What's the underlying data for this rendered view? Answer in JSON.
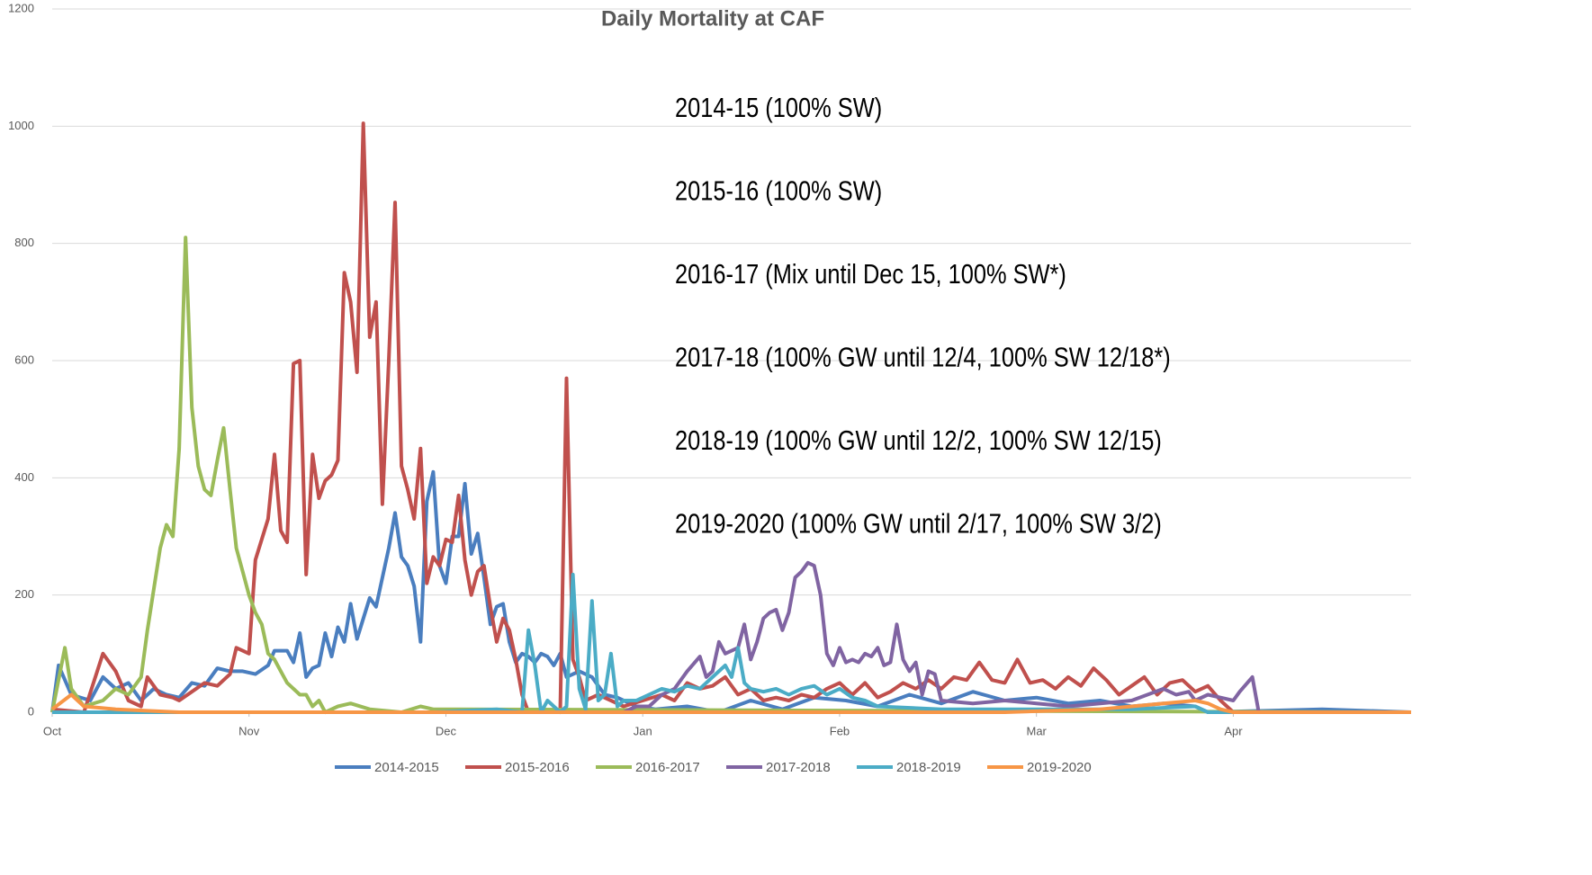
{
  "chart_data": {
    "type": "line",
    "title": "Daily Mortality at CAF",
    "annotations": [
      "2014-15 (100% SW)",
      "2015-16 (100% SW)",
      "2016-17 (Mix until Dec 15, 100% SW*)",
      "2017-18 (100% GW until 12/4, 100% SW 12/18*)",
      "2018-19 (100% GW until 12/2, 100% SW 12/15)",
      "2019-2020 (100% GW until 2/17, 100% SW 3/2)"
    ],
    "xlim": [
      0,
      214
    ],
    "xticks": [
      {
        "value": 0,
        "label": "Oct"
      },
      {
        "value": 31,
        "label": "Nov"
      },
      {
        "value": 62,
        "label": "Dec"
      },
      {
        "value": 93,
        "label": "Jan"
      },
      {
        "value": 124,
        "label": "Feb"
      },
      {
        "value": 155,
        "label": "Mar"
      },
      {
        "value": 186,
        "label": "Apr"
      }
    ],
    "ylim": [
      0,
      1200
    ],
    "yticks": [
      0,
      200,
      400,
      600,
      800,
      1000,
      1200
    ],
    "grid": true,
    "legend": "bottom",
    "series": [
      {
        "name": "2014-2015",
        "color": "#4a7ebf",
        "x": [
          0,
          1,
          3,
          6,
          8,
          10,
          12,
          14,
          16,
          18,
          20,
          22,
          24,
          26,
          28,
          30,
          32,
          34,
          35,
          37,
          38,
          39,
          40,
          41,
          42,
          43,
          44,
          45,
          46,
          47,
          48,
          50,
          51,
          53,
          54,
          55,
          56,
          57,
          58,
          59,
          60,
          61,
          62,
          63,
          64,
          65,
          66,
          67,
          68,
          69,
          70,
          71,
          72,
          73,
          74,
          75,
          76,
          77,
          78,
          79,
          80,
          81,
          83,
          85,
          87,
          89,
          92,
          95,
          100,
          105,
          110,
          115,
          120,
          125,
          130,
          135,
          140,
          145,
          150,
          155,
          160,
          165,
          170,
          175,
          180,
          182,
          200,
          214
        ],
        "values": [
          0,
          80,
          30,
          20,
          60,
          40,
          50,
          20,
          40,
          30,
          25,
          50,
          45,
          75,
          70,
          70,
          65,
          80,
          105,
          105,
          85,
          135,
          60,
          75,
          80,
          135,
          95,
          145,
          120,
          185,
          125,
          195,
          180,
          280,
          340,
          265,
          250,
          215,
          120,
          360,
          410,
          250,
          220,
          300,
          300,
          390,
          270,
          305,
          230,
          150,
          180,
          185,
          120,
          85,
          100,
          95,
          85,
          100,
          95,
          80,
          100,
          60,
          70,
          60,
          30,
          25,
          10,
          5,
          10,
          0,
          20,
          5,
          25,
          20,
          10,
          30,
          15,
          35,
          20,
          25,
          15,
          20,
          10,
          15,
          10,
          0,
          5,
          0
        ]
      },
      {
        "name": "2015-2016",
        "color": "#c0504d",
        "x": [
          0,
          5,
          8,
          10,
          12,
          14,
          15,
          17,
          19,
          20,
          22,
          24,
          26,
          28,
          29,
          31,
          32,
          34,
          35,
          36,
          37,
          38,
          39,
          40,
          41,
          42,
          43,
          44,
          45,
          46,
          47,
          48,
          49,
          50,
          51,
          52,
          53,
          54,
          55,
          56,
          57,
          58,
          59,
          60,
          61,
          62,
          63,
          64,
          65,
          66,
          67,
          68,
          69,
          70,
          71,
          72,
          73,
          74,
          75,
          80,
          81,
          82,
          83,
          84,
          86,
          88,
          90,
          93,
          96,
          98,
          100,
          102,
          104,
          106,
          108,
          110,
          112,
          114,
          116,
          118,
          120,
          122,
          124,
          126,
          128,
          130,
          132,
          134,
          136,
          138,
          140,
          142,
          144,
          146,
          148,
          150,
          152,
          154,
          156,
          158,
          160,
          162,
          164,
          166,
          168,
          170,
          172,
          174,
          176,
          178,
          180,
          182,
          184,
          186,
          214
        ],
        "values": [
          5,
          0,
          100,
          70,
          20,
          10,
          60,
          30,
          25,
          20,
          35,
          50,
          45,
          65,
          110,
          100,
          260,
          330,
          440,
          310,
          290,
          595,
          600,
          235,
          440,
          365,
          395,
          405,
          430,
          750,
          700,
          580,
          1005,
          640,
          700,
          355,
          600,
          870,
          420,
          380,
          330,
          450,
          220,
          265,
          250,
          295,
          290,
          370,
          260,
          200,
          240,
          250,
          180,
          120,
          160,
          140,
          90,
          30,
          0,
          0,
          570,
          90,
          60,
          20,
          30,
          20,
          10,
          20,
          30,
          20,
          50,
          40,
          45,
          60,
          30,
          40,
          20,
          25,
          20,
          30,
          25,
          40,
          50,
          30,
          50,
          25,
          35,
          50,
          40,
          55,
          40,
          60,
          55,
          85,
          55,
          50,
          90,
          50,
          55,
          40,
          60,
          45,
          75,
          55,
          30,
          45,
          60,
          30,
          50,
          55,
          35,
          45,
          20,
          0,
          0
        ]
      },
      {
        "name": "2016-2017",
        "color": "#9bbb59",
        "x": [
          0,
          2,
          3,
          5,
          8,
          10,
          12,
          14,
          15,
          16,
          17,
          18,
          19,
          20,
          21,
          22,
          23,
          24,
          25,
          26,
          27,
          28,
          29,
          30,
          31,
          32,
          33,
          34,
          35,
          36,
          37,
          38,
          39,
          40,
          41,
          42,
          43,
          45,
          47,
          50,
          55,
          58,
          60,
          214
        ],
        "values": [
          0,
          110,
          40,
          10,
          20,
          40,
          30,
          60,
          140,
          210,
          280,
          320,
          300,
          450,
          810,
          520,
          420,
          380,
          370,
          430,
          485,
          380,
          280,
          240,
          200,
          170,
          150,
          100,
          90,
          70,
          50,
          40,
          30,
          30,
          10,
          20,
          0,
          10,
          15,
          5,
          0,
          10,
          5,
          0
        ]
      },
      {
        "name": "2017-2018",
        "color": "#8064a2",
        "x": [
          0,
          90,
          92,
          94,
          96,
          98,
          100,
          102,
          103,
          104,
          105,
          106,
          108,
          109,
          110,
          111,
          112,
          113,
          114,
          115,
          116,
          117,
          118,
          119,
          120,
          121,
          122,
          123,
          124,
          125,
          126,
          127,
          128,
          129,
          130,
          131,
          132,
          133,
          134,
          135,
          136,
          137,
          138,
          139,
          140,
          145,
          150,
          155,
          160,
          165,
          170,
          175,
          177,
          179,
          180,
          182,
          184,
          186,
          187,
          189,
          190,
          214
        ],
        "values": [
          0,
          0,
          10,
          10,
          30,
          40,
          70,
          95,
          60,
          70,
          120,
          100,
          110,
          150,
          90,
          120,
          160,
          170,
          175,
          140,
          170,
          230,
          240,
          255,
          250,
          200,
          100,
          80,
          110,
          85,
          90,
          85,
          100,
          95,
          110,
          80,
          85,
          150,
          90,
          70,
          85,
          30,
          70,
          65,
          20,
          15,
          20,
          15,
          10,
          15,
          20,
          40,
          30,
          35,
          20,
          30,
          25,
          20,
          35,
          60,
          0,
          0
        ]
      },
      {
        "name": "2018-2019",
        "color": "#4bacc6",
        "x": [
          0,
          30,
          60,
          70,
          74,
          75,
          76,
          77,
          78,
          79,
          80,
          81,
          82,
          83,
          84,
          85,
          86,
          87,
          88,
          89,
          90,
          92,
          94,
          96,
          98,
          100,
          102,
          104,
          106,
          107,
          108,
          109,
          110,
          112,
          114,
          116,
          118,
          120,
          122,
          124,
          126,
          128,
          130,
          140,
          150,
          170,
          180,
          182,
          214
        ],
        "values": [
          0,
          0,
          0,
          5,
          0,
          140,
          80,
          0,
          20,
          10,
          0,
          10,
          235,
          40,
          5,
          190,
          20,
          30,
          100,
          10,
          20,
          20,
          30,
          40,
          35,
          45,
          40,
          60,
          80,
          60,
          110,
          50,
          40,
          35,
          40,
          30,
          40,
          45,
          30,
          40,
          25,
          20,
          10,
          5,
          5,
          5,
          10,
          0,
          0
        ]
      },
      {
        "name": "2019-2020",
        "color": "#f79646",
        "x": [
          0,
          3,
          5,
          10,
          20,
          100,
          150,
          165,
          170,
          175,
          180,
          182,
          184,
          186,
          214
        ],
        "values": [
          5,
          30,
          10,
          5,
          0,
          0,
          0,
          5,
          10,
          15,
          20,
          15,
          5,
          0,
          0
        ]
      }
    ]
  }
}
